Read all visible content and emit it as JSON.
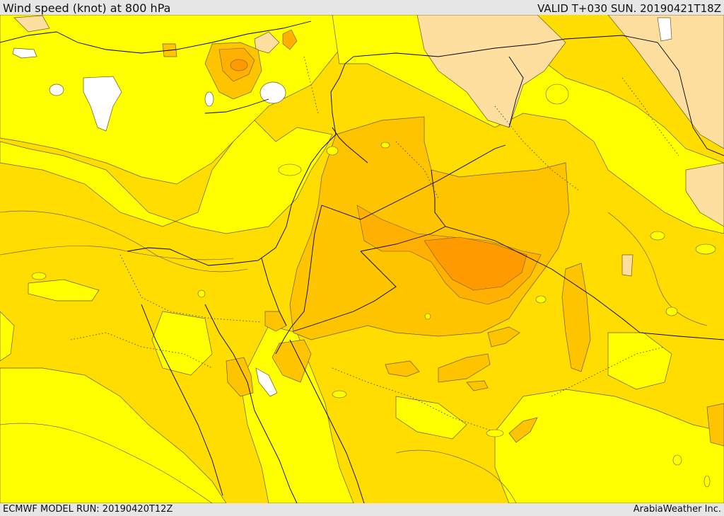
{
  "header": {
    "title": "Wind speed (knot) at 800 hPa",
    "valid_time": "VALID T+030 SUN. 20190421T18Z"
  },
  "footer": {
    "model_run": "ECMWF MODEL RUN: 20190420T12Z",
    "credit": "ArabiaWeather Inc."
  },
  "map": {
    "palette": {
      "white": "#ffffff",
      "bright_yellow": "#ffff00",
      "yellow": "#ffdd00",
      "gold": "#ffc400",
      "light_orange": "#ffb300",
      "orange": "#ff9900",
      "dark_orange": "#f07c00",
      "tan": "#ffdfa0",
      "contour": "#5a5030",
      "border": "#000000"
    }
  }
}
